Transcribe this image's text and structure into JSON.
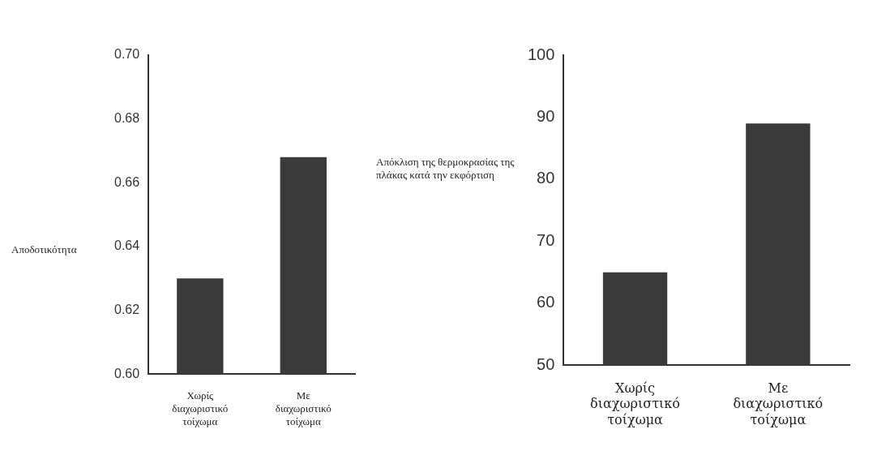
{
  "chart_data": [
    {
      "type": "bar",
      "ylabel": "Αποδοτικότητα",
      "categories": [
        "Χωρίς διαχωριστικό τοίχωμα",
        "Με διαχωριστικό τοίχωμα"
      ],
      "values": [
        0.63,
        0.668
      ],
      "color": "#3a3a3a",
      "ylim": [
        0.6,
        0.7
      ],
      "yticks": [
        {
          "value": 0.6,
          "label": "0.60"
        },
        {
          "value": 0.62,
          "label": "0.62"
        },
        {
          "value": 0.64,
          "label": "0.64"
        },
        {
          "value": 0.66,
          "label": "0.66"
        },
        {
          "value": 0.68,
          "label": "0.68"
        },
        {
          "value": 0.7,
          "label": "0.70"
        }
      ]
    },
    {
      "type": "bar",
      "ylabel": "Απόκλιση της θερμοκρασίας της πλάκας κατά την εκφόρτιση",
      "categories": [
        "Χωρίς διαχωριστικό τοίχωμα",
        "Με διαχωριστικό τοίχωμα"
      ],
      "values": [
        65,
        89
      ],
      "color": "#3a3a3a",
      "ylim": [
        50,
        100
      ],
      "yticks": [
        50,
        60,
        70,
        80,
        90,
        100
      ]
    }
  ]
}
